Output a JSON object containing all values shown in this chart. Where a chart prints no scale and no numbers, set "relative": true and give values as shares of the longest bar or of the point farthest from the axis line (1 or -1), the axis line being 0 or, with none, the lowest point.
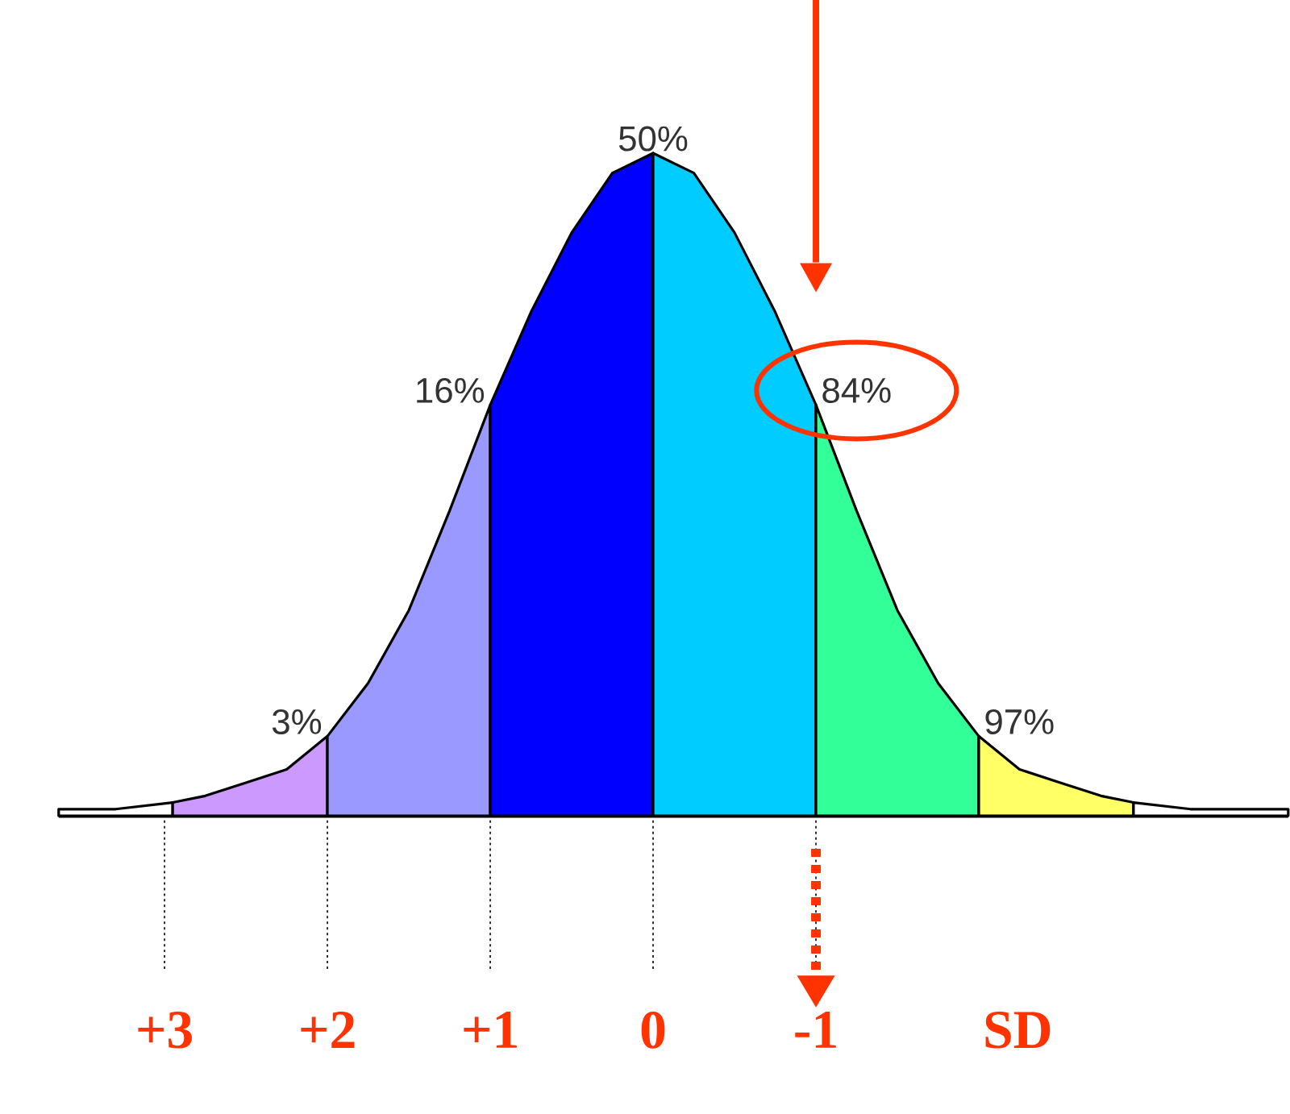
{
  "chart_data": {
    "type": "area",
    "relative": true,
    "series": [
      {
        "color": "#ffffff",
        "x": [
          3.65,
          3.3,
          2.95
        ],
        "values": [
          0.01,
          0.01,
          0.02
        ]
      },
      {
        "color": "#cc99ff",
        "x": [
          2.95,
          2.75,
          2.5,
          2.25,
          2.0
        ],
        "values": [
          0.02,
          0.03,
          0.05,
          0.07,
          0.12
        ]
      },
      {
        "color": "#9999ff",
        "x": [
          2.0,
          1.75,
          1.5,
          1.25,
          1.0
        ],
        "values": [
          0.12,
          0.2,
          0.31,
          0.46,
          0.62
        ]
      },
      {
        "color": "#0000ff",
        "x": [
          1.0,
          0.75,
          0.5,
          0.25,
          0.0
        ],
        "values": [
          0.62,
          0.76,
          0.88,
          0.97,
          1.0
        ]
      },
      {
        "color": "#00ccff",
        "x": [
          0.0,
          -0.25,
          -0.5,
          -0.75,
          -1.0
        ],
        "values": [
          1.0,
          0.97,
          0.88,
          0.76,
          0.62
        ]
      },
      {
        "color": "#33ff99",
        "x": [
          -1.0,
          -1.25,
          -1.5,
          -1.75,
          -2.0
        ],
        "values": [
          0.62,
          0.46,
          0.31,
          0.2,
          0.12
        ]
      },
      {
        "color": "#ffff66",
        "x": [
          -2.0,
          -2.25,
          -2.5,
          -2.75,
          -2.95
        ],
        "values": [
          0.12,
          0.07,
          0.05,
          0.03,
          0.02
        ]
      },
      {
        "color": "#ffffff",
        "x": [
          -2.95,
          -3.3,
          -3.9
        ],
        "values": [
          0.02,
          0.01,
          0.01
        ]
      }
    ],
    "xlim": [
      3.65,
      -3.9
    ],
    "xticks": [
      {
        "value": 3,
        "label": "+3"
      },
      {
        "value": 2,
        "label": "+2"
      },
      {
        "value": 1,
        "label": "+1"
      },
      0,
      -1
    ],
    "xlabel": "SD",
    "annotations": [
      {
        "text": "50%",
        "x": 0,
        "y": 1.0
      },
      {
        "text": "16%",
        "x": 1,
        "y": 0.62
      },
      {
        "text": "3%",
        "x": 2,
        "y": 0.12
      },
      {
        "text": "84%",
        "x": -1,
        "y": 0.62
      },
      {
        "text": "97%",
        "x": -2,
        "y": 0.12
      }
    ],
    "ref_lines": [
      {
        "axis": "x",
        "value": -1,
        "color": "#ff3300"
      }
    ]
  }
}
